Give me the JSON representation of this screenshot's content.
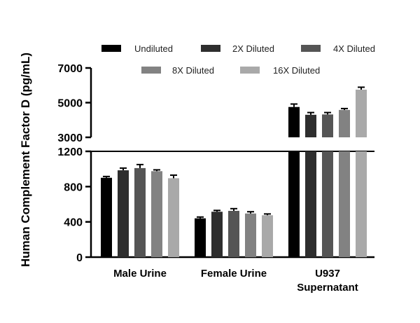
{
  "chart_data": {
    "type": "bar",
    "title": "",
    "xlabel": "",
    "ylabel": "Human Complement Factor D (pg/mL)",
    "categories": [
      "Male Urine",
      "Female Urine",
      "U937 Supernatant"
    ],
    "category_lines": [
      [
        "Male Urine"
      ],
      [
        "Female Urine"
      ],
      [
        "U937",
        "Supernatant"
      ]
    ],
    "series": [
      {
        "name": "Undiluted",
        "color": "#000000",
        "values": [
          900,
          440,
          4750
        ],
        "errors": [
          15,
          15,
          170
        ]
      },
      {
        "name": "2X Diluted",
        "color": "#2e2e2e",
        "values": [
          985,
          515,
          4300
        ],
        "errors": [
          25,
          15,
          130
        ]
      },
      {
        "name": "4X Diluted",
        "color": "#555555",
        "values": [
          1010,
          525,
          4320
        ],
        "errors": [
          40,
          25,
          110
        ]
      },
      {
        "name": "8X Diluted",
        "color": "#828282",
        "values": [
          975,
          495,
          4580
        ],
        "errors": [
          15,
          20,
          80
        ]
      },
      {
        "name": "16X Diluted",
        "color": "#a9a9a9",
        "values": [
          895,
          475,
          5750
        ],
        "errors": [
          35,
          15,
          140
        ]
      }
    ],
    "y_axis_broken": true,
    "y_lower_segment": {
      "range": [
        0,
        1200
      ],
      "ticks": [
        0,
        400,
        800,
        1200
      ],
      "tick_labels": [
        "0",
        "400",
        "800",
        "1200"
      ]
    },
    "y_upper_segment": {
      "range": [
        3000,
        7000
      ],
      "ticks": [
        3000,
        5000,
        7000
      ],
      "tick_labels": [
        "3000",
        "5000",
        "7000"
      ]
    },
    "legend_position": "top",
    "grid": false
  }
}
